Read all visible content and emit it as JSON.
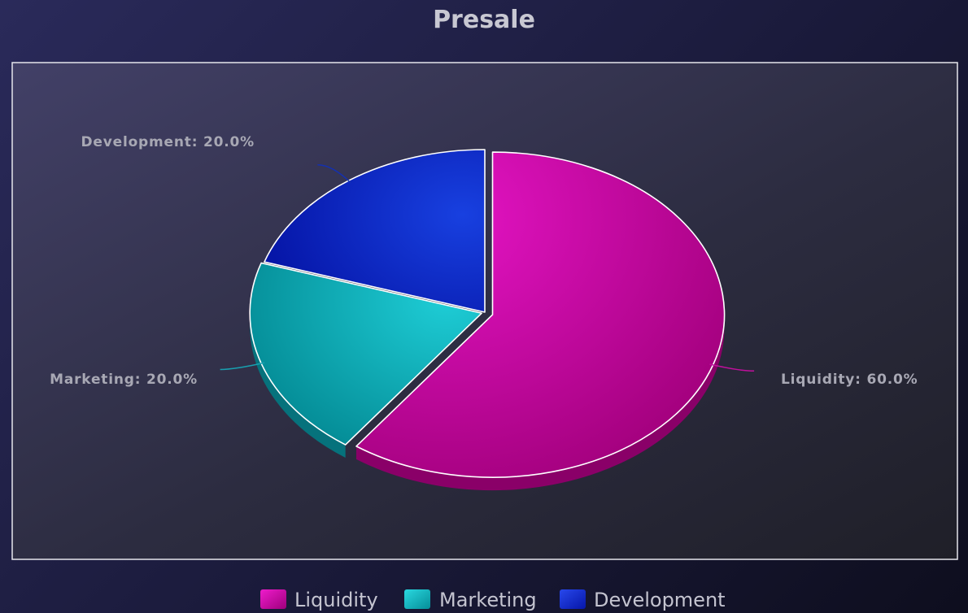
{
  "chart_data": {
    "type": "pie",
    "title": "Presale",
    "categories": [
      "Liquidity",
      "Marketing",
      "Development"
    ],
    "values": [
      60.0,
      20.0,
      20.0
    ],
    "labels": [
      "Liquidity: 60.0%",
      "Marketing: 20.0%",
      "Development: 20.0%"
    ],
    "colors": [
      "#d40aa8",
      "#14b4be",
      "#1030cc"
    ],
    "legend": {
      "position": "bottom-center",
      "items": [
        "Liquidity",
        "Marketing",
        "Development"
      ]
    }
  }
}
